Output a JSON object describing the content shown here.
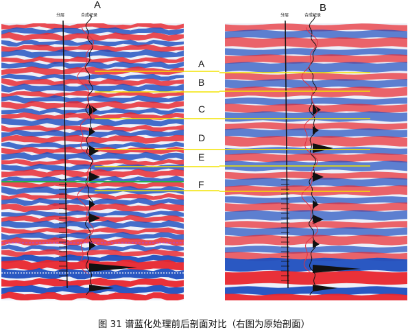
{
  "panels": [
    {
      "label": "A",
      "stratum_header": "分层",
      "synthetic_header": "合成记录"
    },
    {
      "label": "B",
      "stratum_header": "分层",
      "synthetic_header": "合成记录"
    }
  ],
  "horizon_labels": [
    "A",
    "B",
    "C",
    "D",
    "E",
    "F"
  ],
  "caption": "图 31  谱蓝化处理前后剖面对比（右图为原始剖面）",
  "colors": {
    "positive": "#e8262e",
    "negative": "#1f4fbf",
    "horizon_line": "#f2e400",
    "green_marker": "#22b14c",
    "purple_marker": "#b04ad0",
    "well_curve": "#e03040"
  }
}
